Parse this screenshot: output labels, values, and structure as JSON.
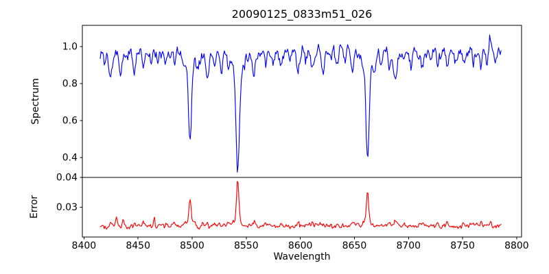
{
  "chart_data": {
    "type": "line",
    "title": "20090125_0833m51_026",
    "xlabel": "Wavelength",
    "xlim": [
      8398.5,
      8804.5
    ],
    "xticks": [
      {
        "v": 8400,
        "label": "8400"
      },
      {
        "v": 8450,
        "label": "8450"
      },
      {
        "v": 8500,
        "label": "8500"
      },
      {
        "v": 8550,
        "label": "8550"
      },
      {
        "v": 8600,
        "label": "8600"
      },
      {
        "v": 8650,
        "label": "8650"
      },
      {
        "v": 8700,
        "label": "8700"
      },
      {
        "v": 8750,
        "label": "8750"
      },
      {
        "v": 8800,
        "label": "8800"
      }
    ],
    "x_start": 8415,
    "x_end": 8786,
    "x_step": 0.75,
    "grid": false,
    "legend": "none",
    "features_format": "[center_wavelength, amplitude, sigma_angstrom]",
    "panels": [
      {
        "name": "spectrum",
        "ylabel": "Spectrum",
        "line_color": "#0000ff",
        "ylim": [
          0.293,
          1.115
        ],
        "yticks": [
          {
            "v": 0.4,
            "label": "0.4"
          },
          {
            "v": 0.6,
            "label": "0.6"
          },
          {
            "v": 0.8,
            "label": "0.8"
          },
          {
            "v": 1.0,
            "label": "1.0"
          }
        ],
        "model": {
          "seed": 11,
          "level": 0.972,
          "noise_sigma": 0.016,
          "noise_smooth": 0.45,
          "feature_sign": -1,
          "features": [
            [
              8413.5,
              0.09,
              1.2
            ],
            [
              8419,
              0.05,
              1.0
            ],
            [
              8424.5,
              0.14,
              1.6
            ],
            [
              8434,
              0.135,
              1.2
            ],
            [
              8440,
              0.05,
              1.0
            ],
            [
              8446.5,
              0.11,
              1.3
            ],
            [
              8455,
              0.06,
              1.1
            ],
            [
              8462,
              0.05,
              1.0
            ],
            [
              8468.5,
              0.07,
              1.1
            ],
            [
              8476,
              0.05,
              1.0
            ],
            [
              8484,
              0.06,
              1.0
            ],
            [
              8493,
              0.06,
              1.0
            ],
            [
              8498.0,
              0.4,
              1.4
            ],
            [
              8498.0,
              0.062,
              5.0
            ],
            [
              8505,
              0.05,
              1.0
            ],
            [
              8514,
              0.15,
              1.4
            ],
            [
              8520,
              0.06,
              1.0
            ],
            [
              8527,
              0.07,
              1.0
            ],
            [
              8534,
              0.05,
              1.0
            ],
            [
              8542.1,
              0.56,
              1.6
            ],
            [
              8542.1,
              0.08,
              6.0
            ],
            [
              8557,
              0.12,
              1.3
            ],
            [
              8568,
              0.07,
              1.0
            ],
            [
              8575,
              0.05,
              1.0
            ],
            [
              8582,
              0.09,
              1.2
            ],
            [
              8590,
              0.06,
              1.0
            ],
            [
              8598,
              0.11,
              1.2
            ],
            [
              8605,
              0.05,
              1.0
            ],
            [
              8611,
              0.07,
              1.0
            ],
            [
              8621,
              0.1,
              1.2
            ],
            [
              8628,
              0.05,
              1.0
            ],
            [
              8634,
              0.08,
              1.0
            ],
            [
              8641,
              0.05,
              1.0
            ],
            [
              8648,
              0.11,
              1.1
            ],
            [
              8662.1,
              0.51,
              1.5
            ],
            [
              8662.1,
              0.07,
              5.5
            ],
            [
              8669,
              0.05,
              1.0
            ],
            [
              8675,
              0.08,
              1.1
            ],
            [
              8682,
              0.09,
              1.0
            ],
            [
              8688,
              0.165,
              1.5
            ],
            [
              8696,
              0.05,
              1.0
            ],
            [
              8702,
              0.07,
              1.0
            ],
            [
              8708,
              0.06,
              1.0
            ],
            [
              8713,
              0.09,
              1.1
            ],
            [
              8720,
              0.06,
              1.0
            ],
            [
              8727,
              0.07,
              1.0
            ],
            [
              8736,
              0.08,
              1.0
            ],
            [
              8744,
              0.06,
              1.0
            ],
            [
              8751,
              0.07,
              1.0
            ],
            [
              8760,
              0.07,
              1.0
            ],
            [
              8767,
              0.09,
              1.1
            ],
            [
              8772,
              0.06,
              1.0
            ],
            [
              8775,
              -0.11,
              0.5
            ],
            [
              8781,
              0.06,
              1.0
            ]
          ]
        }
      },
      {
        "name": "error",
        "ylabel": "Error",
        "line_color": "#ff0000",
        "ylim": [
          0.02,
          0.04
        ],
        "yticks": [
          {
            "v": 0.03,
            "label": "0.03"
          },
          {
            "v": 0.04,
            "label": "0.04"
          }
        ],
        "model": {
          "seed": 77,
          "level": 0.0237,
          "noise_sigma": 0.0004,
          "noise_smooth": 0.4,
          "feature_sign": 1,
          "features": [
            [
              8425,
              0.0016,
              0.9
            ],
            [
              8430,
              0.0033,
              0.7
            ],
            [
              8436,
              0.0028,
              0.7
            ],
            [
              8447,
              0.0012,
              0.8
            ],
            [
              8455,
              0.0008,
              0.8
            ],
            [
              8465,
              0.0033,
              0.6
            ],
            [
              8476,
              0.0008,
              0.8
            ],
            [
              8484,
              0.0009,
              0.8
            ],
            [
              8493,
              0.001,
              0.8
            ],
            [
              8498,
              0.0066,
              0.9
            ],
            [
              8498,
              0.0016,
              2.8
            ],
            [
              8509,
              0.0011,
              0.8
            ],
            [
              8514,
              0.0013,
              0.8
            ],
            [
              8525,
              0.0021,
              0.7
            ],
            [
              8534,
              0.0009,
              0.8
            ],
            [
              8542.1,
              0.013,
              1.0
            ],
            [
              8542.1,
              0.0028,
              3.0
            ],
            [
              8557,
              0.0013,
              0.8
            ],
            [
              8568,
              0.0009,
              0.8
            ],
            [
              8582,
              0.001,
              0.8
            ],
            [
              8598,
              0.0012,
              0.8
            ],
            [
              8611,
              0.0008,
              0.8
            ],
            [
              8621,
              0.001,
              0.8
            ],
            [
              8634,
              0.0008,
              0.8
            ],
            [
              8648,
              0.001,
              0.8
            ],
            [
              8662.1,
              0.0098,
              0.9
            ],
            [
              8662.1,
              0.0023,
              2.8
            ],
            [
              8675,
              0.0009,
              0.8
            ],
            [
              8682,
              0.001,
              0.8
            ],
            [
              8688,
              0.0018,
              1.0
            ],
            [
              8702,
              0.0009,
              0.8
            ],
            [
              8713,
              0.0012,
              0.8
            ],
            [
              8727,
              0.0009,
              0.8
            ],
            [
              8736,
              0.0012,
              0.8
            ],
            [
              8751,
              0.0013,
              0.8
            ],
            [
              8760,
              0.0011,
              0.8
            ],
            [
              8767,
              0.0017,
              0.7
            ],
            [
              8776,
              0.0015,
              0.7
            ]
          ]
        }
      }
    ]
  }
}
